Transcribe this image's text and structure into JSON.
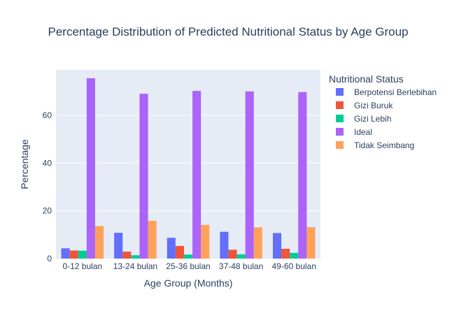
{
  "chart_data": {
    "type": "bar",
    "title": "Percentage Distribution of Predicted Nutritional Status by Age Group",
    "xlabel": "Age Group (Months)",
    "ylabel": "Percentage",
    "ylim": [
      0,
      79
    ],
    "yticks": [
      0,
      20,
      40,
      60
    ],
    "grid": true,
    "legend_title": "Nutritional Status",
    "legend_position": "right",
    "categories": [
      "0-12 bulan",
      "13-24 bulan",
      "25-36 bulan",
      "37-48 bulan",
      "49-60 bulan"
    ],
    "series": [
      {
        "name": "Berpotensi Berlebihan",
        "color": "#636efa",
        "values": [
          4.3,
          10.8,
          8.7,
          11.2,
          10.7
        ]
      },
      {
        "name": "Gizi Buruk",
        "color": "#ef553b",
        "values": [
          3.4,
          2.9,
          5.3,
          3.7,
          4.1
        ]
      },
      {
        "name": "Gizi Lebih",
        "color": "#00cc96",
        "values": [
          3.3,
          1.4,
          1.7,
          1.8,
          2.4
        ]
      },
      {
        "name": "Ideal",
        "color": "#ab63fa",
        "values": [
          75.5,
          69.0,
          70.2,
          70.0,
          69.7
        ]
      },
      {
        "name": "Tidak Seimbang",
        "color": "#ffa15a",
        "values": [
          13.6,
          15.8,
          14.1,
          13.1,
          13.2
        ]
      }
    ]
  }
}
